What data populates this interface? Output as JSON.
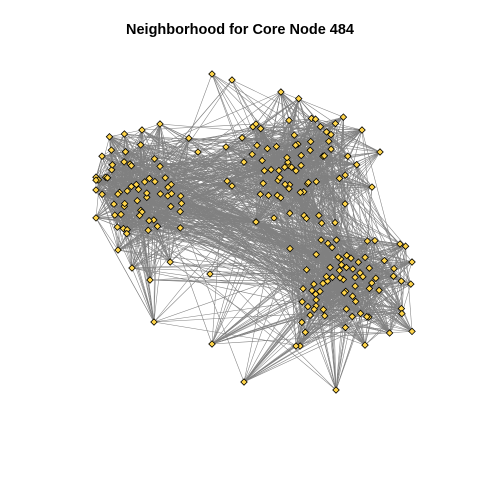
{
  "title": "Neighborhood for Core Node 484",
  "graph": {
    "layout": "force-directed network",
    "edge_color": "#808080",
    "node_fill": "#FFD54A",
    "node_stroke": "#000000",
    "node_shape": "diamond",
    "clusters": [
      "left",
      "upper-right",
      "lower-right"
    ]
  }
}
